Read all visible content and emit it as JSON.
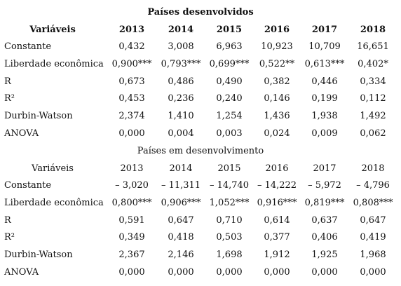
{
  "sections": [
    {
      "title": "Países desenvolvidos",
      "header": [
        "Variáveis",
        "2013",
        "2014",
        "2015",
        "2016",
        "2017",
        "2018"
      ],
      "rows": [
        [
          "Constante",
          "0,432",
          "3,008",
          "6,963",
          "10,923",
          "10,709",
          "16,651"
        ],
        [
          "Liberdade econômica",
          "0,900***",
          "0,793***",
          "0,699***",
          "0,522**",
          "0,613***",
          "0,402*"
        ],
        [
          "R",
          "0,673",
          "0,486",
          "0,490",
          "0,382",
          "0,446",
          "0,334"
        ],
        [
          "R²",
          "0,453",
          "0,236",
          "0,240",
          "0,146",
          "0,199",
          "0,112"
        ],
        [
          "Durbin-Watson",
          "2,374",
          "1,410",
          "1,254",
          "1,436",
          "1,938",
          "1,492"
        ],
        [
          "ANOVA",
          "0,000",
          "0,004",
          "0,003",
          "0,024",
          "0,009",
          "0,062"
        ]
      ]
    },
    {
      "title": "Países em desenvolvimento",
      "header": [
        "Variáveis",
        "2013",
        "2014",
        "2015",
        "2016",
        "2017",
        "2018"
      ],
      "rows": [
        [
          "Constante",
          "– 3,020",
          "– 11,311",
          "– 14,740",
          "– 14,222",
          "– 5,972",
          "– 4,796"
        ],
        [
          "Liberdade econômica",
          "0,800***",
          "0,906***",
          "1,052***",
          "0,916***",
          "0,819***",
          "0,808***"
        ],
        [
          "R",
          "0,591",
          "0,647",
          "0,710",
          "0,614",
          "0,637",
          "0,647"
        ],
        [
          "R²",
          "0,349",
          "0,418",
          "0,503",
          "0,377",
          "0,406",
          "0,419"
        ],
        [
          "Durbin-Watson",
          "2,367",
          "2,146",
          "1,698",
          "1,912",
          "1,925",
          "1,968"
        ],
        [
          "ANOVA",
          "0,000",
          "0,000",
          "0,000",
          "0,000",
          "0,000",
          "0,000"
        ]
      ]
    }
  ]
}
